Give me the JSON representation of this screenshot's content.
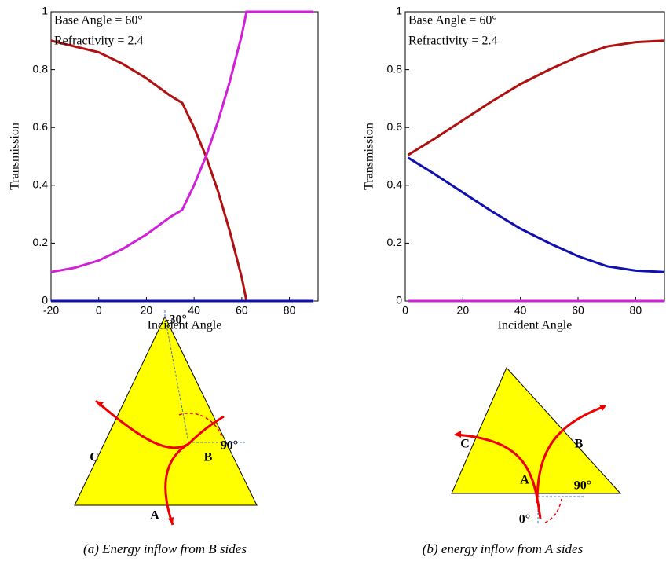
{
  "chart_data": [
    {
      "type": "line",
      "ylabel": "Transmission",
      "xlabel": "Incident Angle",
      "annotations": [
        "Base Angle = 60°",
        "Refractivity = 2.4"
      ],
      "x": [
        -20,
        -10,
        0,
        10,
        20,
        30,
        35,
        40,
        45,
        50,
        55,
        60,
        62,
        70,
        80,
        90
      ],
      "series": [
        {
          "color": "#b01010",
          "values": [
            0.9,
            0.88,
            0.86,
            0.82,
            0.77,
            0.71,
            0.685,
            0.6,
            0.5,
            0.38,
            0.24,
            0.08,
            0,
            0,
            0,
            0
          ]
        },
        {
          "color": "#d020d8",
          "values": [
            0.1,
            0.115,
            0.14,
            0.18,
            0.23,
            0.29,
            0.315,
            0.4,
            0.5,
            0.62,
            0.76,
            0.92,
            1,
            1,
            1,
            1
          ]
        },
        {
          "color": "#1010b0",
          "values": [
            0,
            0,
            0,
            0,
            0,
            0,
            0,
            0,
            0,
            0,
            0,
            0,
            0,
            0,
            0,
            0
          ]
        }
      ],
      "xlim": [
        -20,
        92
      ],
      "ylim": [
        0,
        1
      ],
      "xticks": [
        -20,
        0,
        20,
        40,
        60,
        80
      ],
      "yticks": [
        0,
        0.2,
        0.4,
        0.6,
        0.8,
        1
      ]
    },
    {
      "type": "line",
      "ylabel": "Transmission",
      "xlabel": "Incident Angle",
      "annotations": [
        "Base Angle = 60°",
        "Refractivity = 2.4"
      ],
      "x": [
        1,
        10,
        20,
        30,
        40,
        50,
        60,
        70,
        80,
        90
      ],
      "series": [
        {
          "color": "#b01010",
          "values": [
            0.505,
            0.56,
            0.625,
            0.69,
            0.75,
            0.8,
            0.845,
            0.88,
            0.895,
            0.9
          ]
        },
        {
          "color": "#1010b0",
          "values": [
            0.495,
            0.44,
            0.375,
            0.31,
            0.25,
            0.2,
            0.155,
            0.12,
            0.105,
            0.1
          ]
        },
        {
          "color": "#d020d8",
          "values": [
            0,
            0,
            0,
            0,
            0,
            0,
            0,
            0,
            0,
            0
          ]
        }
      ],
      "xlim": [
        0,
        90
      ],
      "ylim": [
        0,
        1
      ],
      "xticks": [
        0,
        20,
        40,
        60,
        80
      ],
      "yticks": [
        0,
        0.2,
        0.4,
        0.6,
        0.8,
        1
      ]
    }
  ],
  "diagrams": [
    {
      "labels": [
        "C",
        "B",
        "A",
        "-30°",
        "90°"
      ],
      "caption": "(a) Energy inflow from B sides"
    },
    {
      "labels": [
        "C",
        "B",
        "A",
        "90°",
        "0°"
      ],
      "caption": "(b) energy inflow from A sides"
    }
  ]
}
